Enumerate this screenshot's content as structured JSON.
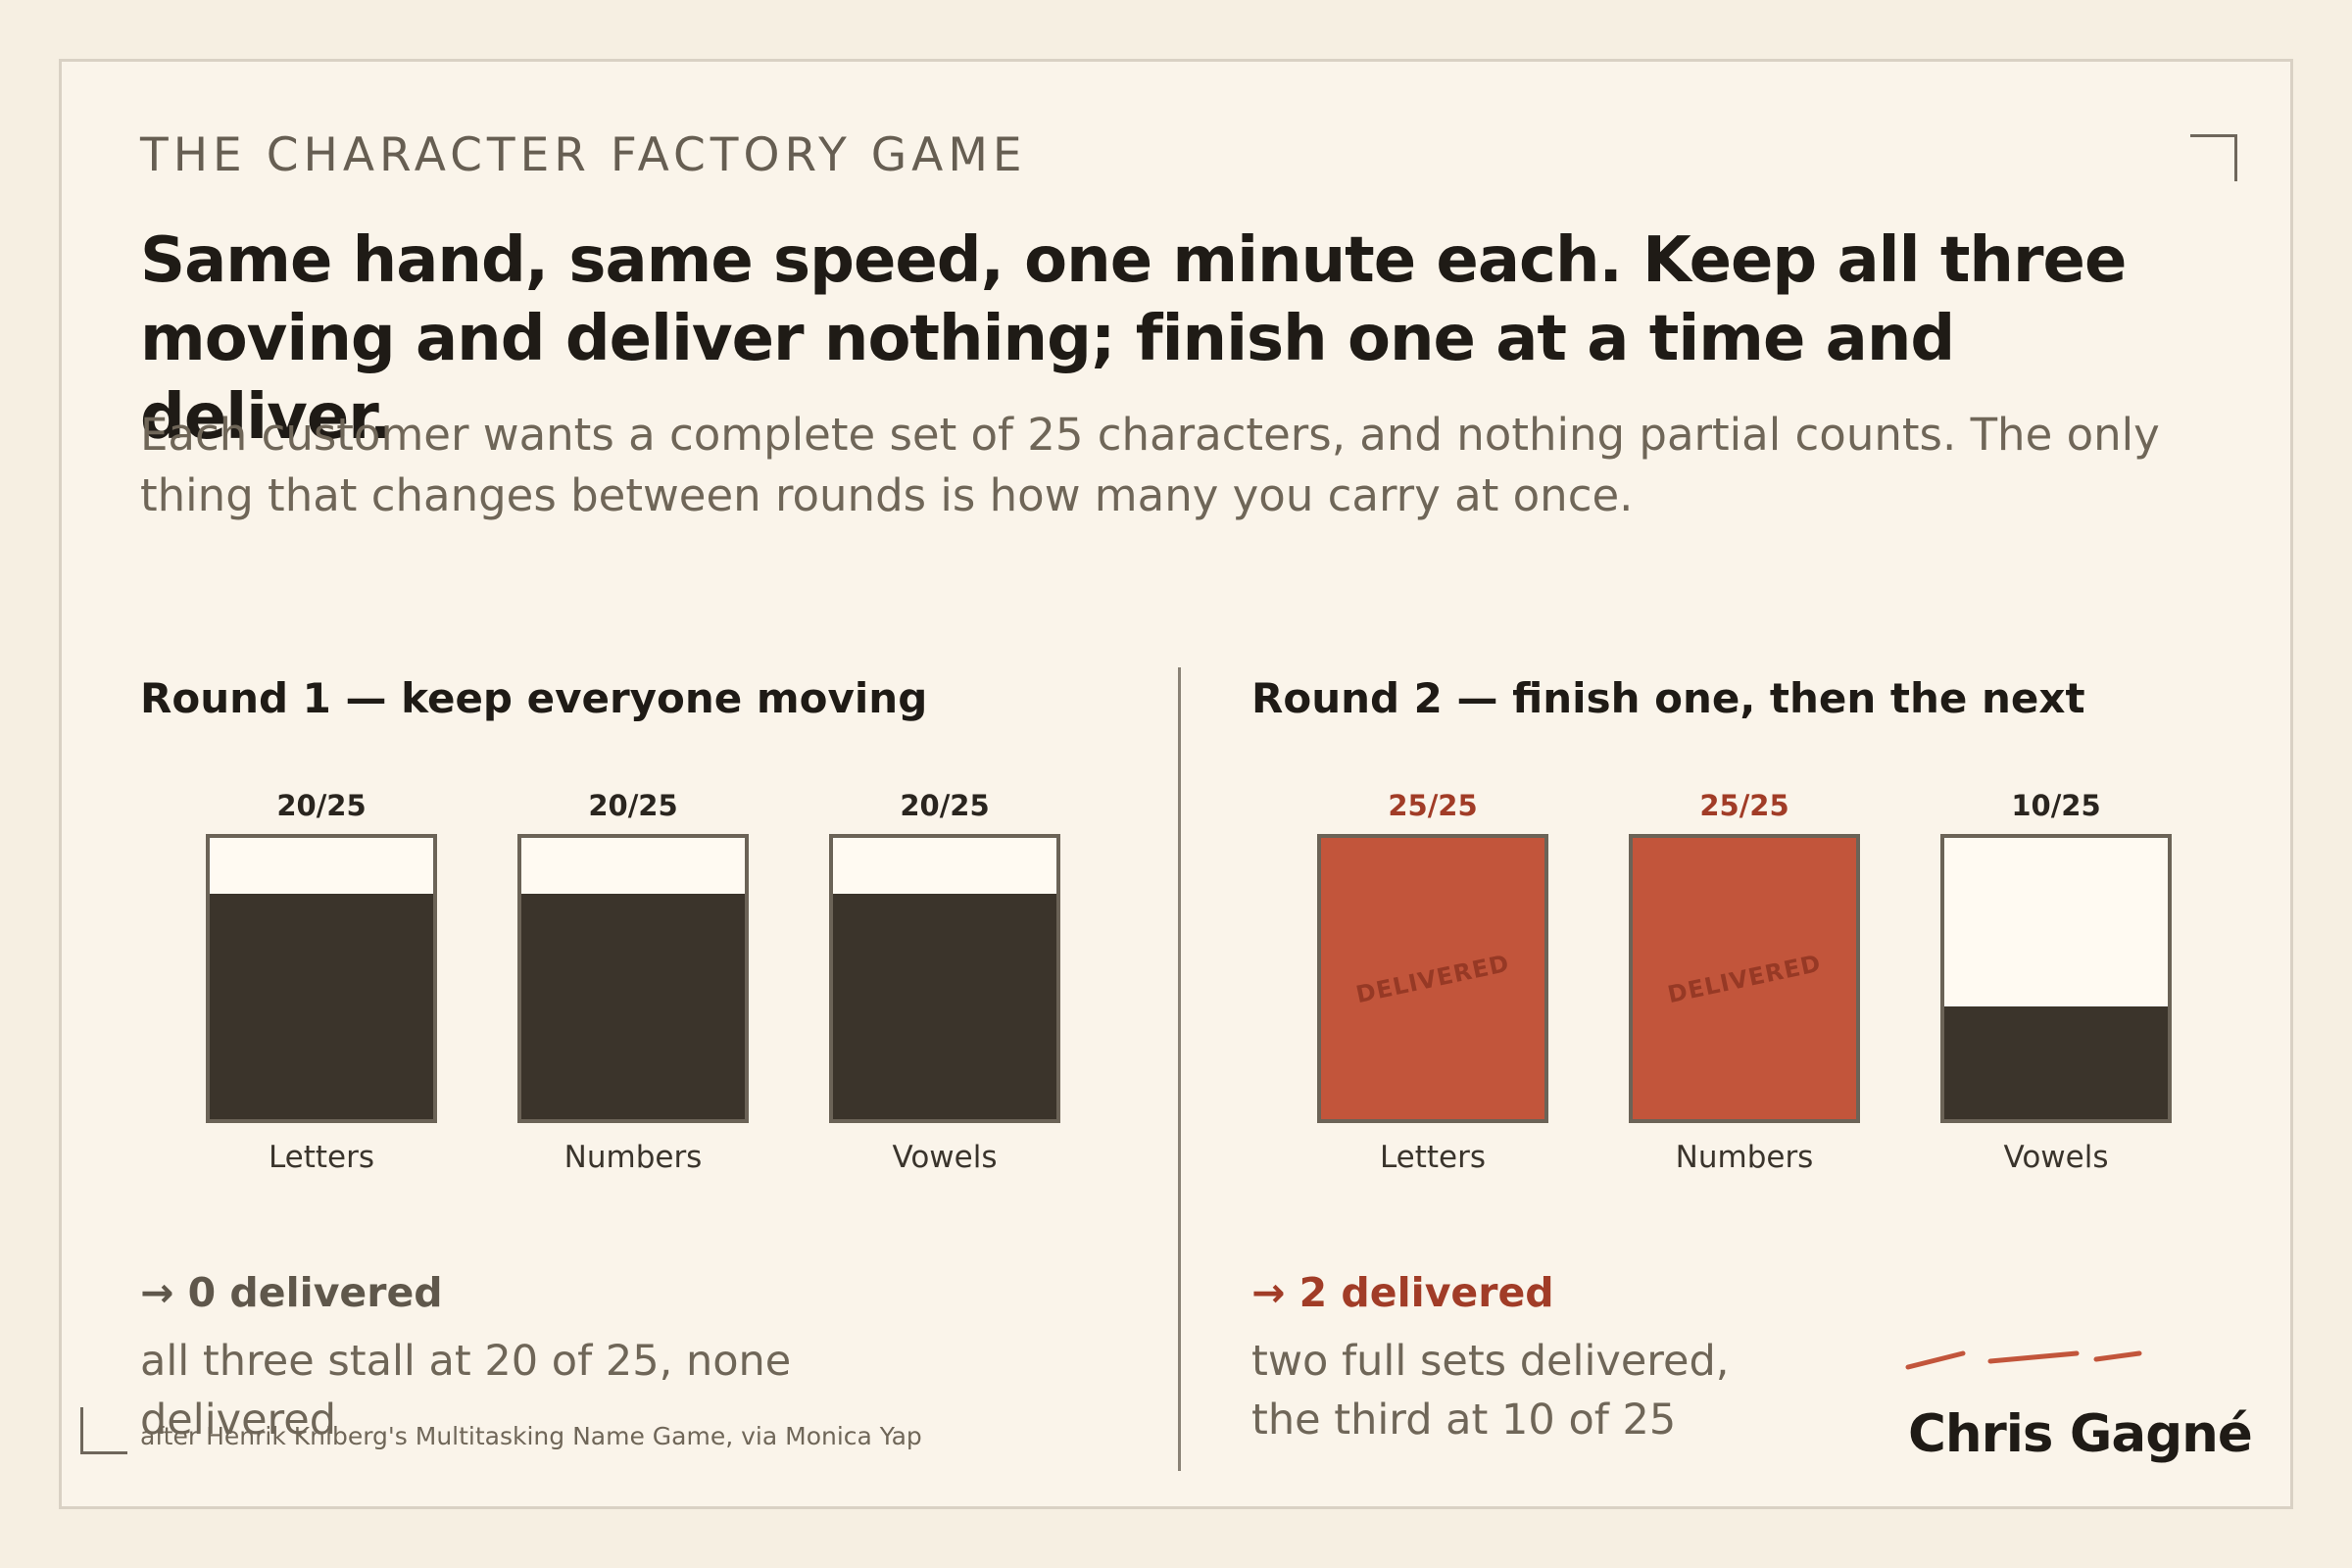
{
  "eyebrow": "THE CHARACTER FACTORY GAME",
  "headline": "Same hand, same speed, one minute each. Keep all three moving and deliver nothing; finish one at a time and deliver.",
  "lede": "Each customer wants a complete set of 25 characters, and nothing partial counts. The only thing that changes between rounds is how many you carry at once.",
  "colors": {
    "accent": "#c2553b",
    "ink": "#3b342b",
    "paper": "#faf4ea"
  },
  "round1": {
    "title": "Round 1 — keep everyone moving",
    "jars": [
      {
        "label": "Letters",
        "count": "20/25",
        "filled": 20,
        "capacity": 25
      },
      {
        "label": "Numbers",
        "count": "20/25",
        "filled": 20,
        "capacity": 25
      },
      {
        "label": "Vowels",
        "count": "20/25",
        "filled": 20,
        "capacity": 25
      }
    ],
    "result": "→ 0 delivered",
    "note": "all three stall at 20 of 25, none delivered"
  },
  "round2": {
    "title": "Round 2 — finish one, then the next",
    "jars": [
      {
        "label": "Letters",
        "count": "25/25",
        "filled": 25,
        "capacity": 25,
        "stamp": "DELIVERED"
      },
      {
        "label": "Numbers",
        "count": "25/25",
        "filled": 25,
        "capacity": 25,
        "stamp": "DELIVERED"
      },
      {
        "label": "Vowels",
        "count": "10/25",
        "filled": 10,
        "capacity": 25
      }
    ],
    "result": "→ 2 delivered",
    "note": "two full sets delivered, the third at 10 of 25"
  },
  "credit": "after Henrik Kniberg's Multitasking Name Game, via Monica Yap",
  "signature": "Chris Gagné"
}
